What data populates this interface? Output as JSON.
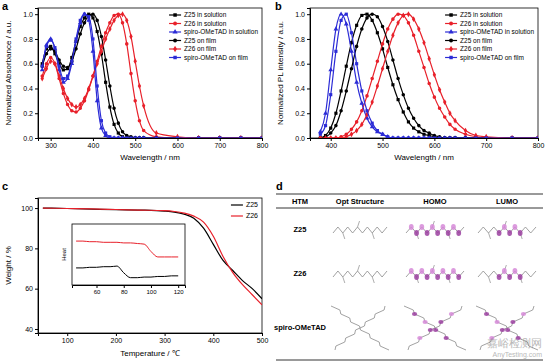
{
  "chart_data": [
    {
      "type": "line",
      "title": "a",
      "x_label": "Wavelength / nm",
      "y_label": "Normalized Absorbance / a.u.",
      "x": [
        280,
        290,
        300,
        310,
        320,
        330,
        340,
        350,
        360,
        370,
        380,
        390,
        400,
        410,
        420,
        430,
        440,
        450,
        460,
        470,
        480,
        490,
        500,
        510,
        520,
        550,
        600,
        650,
        700,
        750,
        800
      ],
      "series": [
        {
          "name": "Z25 in solution",
          "color": "#000000",
          "marker": "square",
          "values": [
            0.6,
            0.72,
            0.74,
            0.68,
            0.6,
            0.55,
            0.56,
            0.65,
            0.78,
            0.9,
            0.97,
            1.0,
            0.97,
            0.86,
            0.68,
            0.45,
            0.25,
            0.11,
            0.04,
            0.01,
            0,
            0,
            0,
            0,
            0,
            0,
            0,
            0,
            0,
            0,
            0
          ]
        },
        {
          "name": "Z26 in solution",
          "color": "#e8202a",
          "marker": "circle",
          "values": [
            0.5,
            0.6,
            0.65,
            0.6,
            0.48,
            0.36,
            0.27,
            0.22,
            0.21,
            0.24,
            0.3,
            0.39,
            0.5,
            0.62,
            0.74,
            0.85,
            0.93,
            0.99,
            1.0,
            0.93,
            0.76,
            0.52,
            0.3,
            0.14,
            0.06,
            0.01,
            0,
            0,
            0,
            0,
            0
          ]
        },
        {
          "name": "spiro-OMeTAD in solution",
          "color": "#2b2bd6",
          "marker": "triangle",
          "values": [
            0.55,
            0.75,
            0.8,
            0.72,
            0.55,
            0.45,
            0.48,
            0.6,
            0.78,
            0.93,
            1.0,
            0.95,
            0.7,
            0.3,
            0.08,
            0.02,
            0,
            0,
            0,
            0,
            0,
            0,
            0,
            0,
            0,
            0,
            0,
            0,
            0,
            0,
            0
          ]
        },
        {
          "name": "Z25 on film",
          "color": "#000000",
          "marker": "circle",
          "values": [
            0.58,
            0.68,
            0.72,
            0.7,
            0.63,
            0.58,
            0.57,
            0.62,
            0.72,
            0.84,
            0.93,
            0.99,
            1.0,
            0.95,
            0.82,
            0.63,
            0.42,
            0.24,
            0.12,
            0.05,
            0.02,
            0.01,
            0,
            0,
            0,
            0,
            0,
            0,
            0,
            0,
            0
          ]
        },
        {
          "name": "Z26 on film",
          "color": "#e8202a",
          "marker": "diamond",
          "values": [
            0.48,
            0.56,
            0.62,
            0.6,
            0.5,
            0.4,
            0.32,
            0.27,
            0.25,
            0.27,
            0.32,
            0.4,
            0.5,
            0.6,
            0.7,
            0.8,
            0.88,
            0.95,
            0.99,
            1.0,
            0.95,
            0.82,
            0.62,
            0.42,
            0.26,
            0.04,
            0.01,
            0,
            0,
            0,
            0
          ]
        },
        {
          "name": "spiro-OMeTAD on film",
          "color": "#2b2bd6",
          "marker": "square",
          "values": [
            0.58,
            0.74,
            0.79,
            0.73,
            0.58,
            0.48,
            0.5,
            0.62,
            0.8,
            0.95,
            1.0,
            0.98,
            0.8,
            0.42,
            0.14,
            0.04,
            0.01,
            0,
            0,
            0,
            0,
            0,
            0,
            0,
            0,
            0,
            0,
            0,
            0,
            0,
            0
          ]
        }
      ],
      "xlim": [
        270,
        800
      ],
      "xticks": [
        300,
        400,
        500,
        600,
        700,
        800
      ],
      "ylim": [
        0,
        1.05
      ],
      "yticks": [
        {
          "value": 0,
          "label": "0.0"
        },
        {
          "value": 0.2,
          "label": "0.2"
        },
        {
          "value": 0.4,
          "label": "0.4"
        },
        {
          "value": 0.6,
          "label": "0.6"
        },
        {
          "value": 0.8,
          "label": "0.8"
        },
        {
          "value": 1,
          "label": "1.0"
        }
      ],
      "grid": false,
      "legend": "top-right"
    },
    {
      "type": "line",
      "title": "b",
      "x_label": "Wavelength / nm",
      "y_label": "Normalized PL intensity / a.u.",
      "x": [
        380,
        390,
        400,
        410,
        420,
        430,
        440,
        450,
        460,
        470,
        480,
        490,
        500,
        510,
        520,
        530,
        540,
        550,
        560,
        570,
        580,
        590,
        600,
        610,
        620,
        630,
        640,
        660,
        680,
        700,
        750,
        800
      ],
      "series": [
        {
          "name": "Z25 in solution",
          "color": "#000000",
          "marker": "square",
          "values": [
            0,
            0.02,
            0.08,
            0.2,
            0.38,
            0.58,
            0.77,
            0.91,
            0.99,
            1.0,
            0.95,
            0.85,
            0.72,
            0.57,
            0.43,
            0.31,
            0.21,
            0.13,
            0.08,
            0.05,
            0.03,
            0.02,
            0.01,
            0,
            0,
            0,
            0,
            0,
            0,
            0,
            0,
            0
          ]
        },
        {
          "name": "Z26 in solution",
          "color": "#e8202a",
          "marker": "circle",
          "values": [
            0,
            0,
            0,
            0,
            0.01,
            0.03,
            0.07,
            0.13,
            0.22,
            0.34,
            0.48,
            0.62,
            0.76,
            0.88,
            0.96,
            1.0,
            0.99,
            0.93,
            0.83,
            0.7,
            0.57,
            0.44,
            0.33,
            0.24,
            0.17,
            0.11,
            0.07,
            0.03,
            0.01,
            0,
            0,
            0
          ]
        },
        {
          "name": "spiro-OMeTAD in solution",
          "color": "#2b2bd6",
          "marker": "triangle",
          "values": [
            0.05,
            0.2,
            0.55,
            0.88,
            1.0,
            0.92,
            0.7,
            0.45,
            0.28,
            0.16,
            0.09,
            0.05,
            0.03,
            0.01,
            0,
            0,
            0,
            0,
            0,
            0,
            0,
            0,
            0,
            0,
            0,
            0,
            0,
            0,
            0,
            0,
            0,
            0
          ]
        },
        {
          "name": "Z25 on film",
          "color": "#000000",
          "marker": "circle",
          "values": [
            0,
            0.01,
            0.04,
            0.1,
            0.22,
            0.38,
            0.56,
            0.74,
            0.88,
            0.97,
            1.0,
            0.98,
            0.9,
            0.78,
            0.63,
            0.48,
            0.35,
            0.24,
            0.16,
            0.1,
            0.06,
            0.04,
            0.02,
            0.01,
            0,
            0,
            0,
            0,
            0,
            0,
            0,
            0
          ]
        },
        {
          "name": "Z26 on film",
          "color": "#e8202a",
          "marker": "diamond",
          "values": [
            0,
            0,
            0,
            0,
            0,
            0.01,
            0.03,
            0.06,
            0.11,
            0.19,
            0.29,
            0.42,
            0.56,
            0.7,
            0.83,
            0.93,
            0.99,
            1.0,
            0.96,
            0.88,
            0.77,
            0.64,
            0.51,
            0.39,
            0.29,
            0.2,
            0.14,
            0.06,
            0.02,
            0.01,
            0,
            0
          ]
        },
        {
          "name": "spiro-OMeTAD on film",
          "color": "#2b2bd6",
          "marker": "square",
          "values": [
            0.03,
            0.1,
            0.35,
            0.7,
            0.95,
            1.0,
            0.85,
            0.6,
            0.38,
            0.22,
            0.12,
            0.06,
            0.03,
            0.01,
            0,
            0,
            0,
            0,
            0,
            0,
            0,
            0,
            0,
            0,
            0,
            0,
            0,
            0,
            0,
            0,
            0,
            0
          ]
        }
      ],
      "xlim": [
        360,
        800
      ],
      "xticks": [
        400,
        500,
        600,
        700,
        800
      ],
      "ylim": [
        0,
        1.05
      ],
      "yticks": [
        {
          "value": 0,
          "label": "0.0"
        },
        {
          "value": 0.2,
          "label": "0.2"
        },
        {
          "value": 0.4,
          "label": "0.4"
        },
        {
          "value": 0.6,
          "label": "0.6"
        },
        {
          "value": 0.8,
          "label": "0.8"
        },
        {
          "value": 1,
          "label": "1.0"
        }
      ],
      "grid": false,
      "legend": "top-right"
    },
    {
      "type": "line",
      "title": "c",
      "x_label": "Temperature / ℃",
      "y_label": "Weight / %",
      "x": [
        50,
        100,
        150,
        200,
        250,
        300,
        320,
        340,
        360,
        380,
        400,
        420,
        440,
        460,
        480,
        500
      ],
      "series": [
        {
          "name": "Z25",
          "color": "#000000",
          "values": [
            100,
            99.8,
            99.5,
            99.2,
            99,
            98.5,
            98,
            97,
            95,
            90,
            82,
            74,
            69,
            64,
            60,
            55
          ]
        },
        {
          "name": "Z26",
          "color": "#e8202a",
          "values": [
            100,
            99.8,
            99.6,
            99.3,
            99,
            98.7,
            98.3,
            97.5,
            96,
            93,
            86,
            76,
            68,
            62,
            57,
            52
          ]
        }
      ],
      "xlim": [
        40,
        500
      ],
      "xticks": [
        100,
        200,
        300,
        400,
        500
      ],
      "ylim": [
        38,
        105
      ],
      "yticks": [
        40,
        60,
        80,
        100
      ],
      "grid": false,
      "legend": "top-right"
    },
    {
      "type": "line",
      "y_label": "Heat",
      "x": [
        45,
        50,
        55,
        60,
        65,
        70,
        75,
        80,
        85,
        90,
        95,
        100,
        105,
        110,
        115,
        120
      ],
      "series": [
        {
          "color": "#000000",
          "values": [
            0.28,
            0.28,
            0.29,
            0.29,
            0.3,
            0.3,
            0.31,
            0.2,
            0.12,
            0.12,
            0.13,
            0.13,
            0.14,
            0.14,
            0.15,
            0.15
          ]
        },
        {
          "color": "#e8202a",
          "values": [
            0.72,
            0.72,
            0.71,
            0.71,
            0.7,
            0.7,
            0.7,
            0.69,
            0.69,
            0.68,
            0.67,
            0.55,
            0.46,
            0.46,
            0.46,
            0.46
          ]
        }
      ],
      "xlim": [
        42,
        125
      ],
      "xticks": [
        60,
        80,
        100,
        120
      ],
      "ylim": [
        0,
        1
      ],
      "grid": false,
      "tick_labels": "x"
    }
  ],
  "table": {
    "title": "d",
    "columns": [
      "HTM",
      "Opt Structure",
      "HOMO",
      "LUMO"
    ],
    "rows": [
      "Z25",
      "Z26",
      "spiro-OMeTAD"
    ]
  },
  "watermark": [
    "嘉峪检测网",
    "AnyTesting.com"
  ]
}
